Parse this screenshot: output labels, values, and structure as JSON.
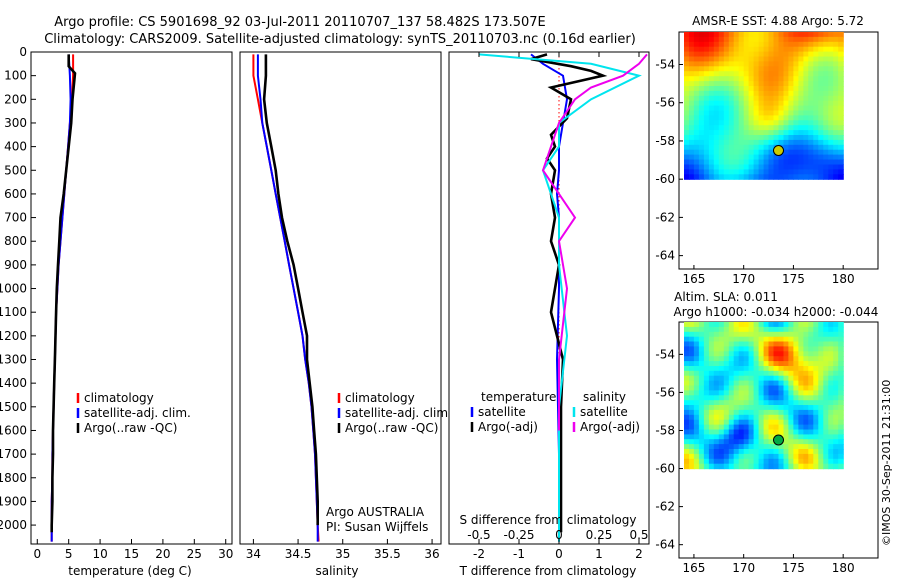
{
  "header": {
    "line1": "Argo profile: CS 5901698_92 03-Jul-2011 20110707_137 58.482S 173.507E",
    "line2": "Climatology: CARS2009. Satellite-adjusted climatology: synTS_20110703.nc (0.16d earlier)"
  },
  "colors": {
    "climatology": "#ff0000",
    "satellite": "#0000ff",
    "argo": "#000000",
    "sal_satellite": "#00e5ee",
    "sal_argo": "#ee00ee"
  },
  "chart_data": [
    {
      "type": "line",
      "panel": "temperature",
      "xlabel": "temperature (deg C)",
      "ylabel": "",
      "xlim": [
        -1,
        31
      ],
      "ylim": [
        0,
        2080
      ],
      "y_reversed": true,
      "xticks": [
        0,
        5,
        10,
        15,
        20,
        25,
        30
      ],
      "yticks": [
        0,
        100,
        200,
        300,
        400,
        500,
        600,
        700,
        800,
        900,
        1000,
        1100,
        1200,
        1300,
        1400,
        1500,
        1600,
        1700,
        1800,
        1900,
        2000
      ],
      "legend": [
        "climatology",
        "satellite-adj. clim.",
        "Argo(..raw -QC)"
      ],
      "series": [
        {
          "name": "climatology",
          "color": "#ff0000",
          "x": [
            5.7,
            5.7,
            5.5,
            5.2,
            4.9,
            4.6,
            4.3,
            4.0,
            3.7,
            3.4,
            3.2,
            3.0,
            2.9,
            2.8,
            2.7,
            2.6,
            2.5,
            2.4,
            2.4,
            2.3,
            2.3,
            2.3
          ],
          "y": [
            10,
            100,
            200,
            300,
            400,
            500,
            600,
            700,
            800,
            900,
            1000,
            1100,
            1200,
            1300,
            1400,
            1500,
            1600,
            1700,
            1800,
            1900,
            2000,
            2070
          ]
        },
        {
          "name": "satellite-adj. clim.",
          "color": "#0000ff",
          "x": [
            5.0,
            5.2,
            5.3,
            5.2,
            4.9,
            4.6,
            4.3,
            4.0,
            3.7,
            3.4,
            3.2,
            3.0,
            2.9,
            2.8,
            2.7,
            2.6,
            2.5,
            2.4,
            2.4,
            2.3,
            2.3,
            2.3
          ],
          "y": [
            10,
            100,
            200,
            300,
            400,
            500,
            600,
            700,
            800,
            900,
            1000,
            1100,
            1200,
            1300,
            1400,
            1500,
            1600,
            1700,
            1800,
            1900,
            2000,
            2070
          ]
        },
        {
          "name": "Argo(..raw -QC)",
          "color": "#000000",
          "x": [
            5.0,
            5.0,
            6.0,
            5.6,
            5.4,
            5.0,
            4.6,
            4.2,
            3.7,
            3.5,
            3.3,
            3.1,
            3.0,
            2.9,
            2.8,
            2.7,
            2.6,
            2.5,
            2.5,
            2.4,
            2.4,
            2.3,
            2.3
          ],
          "y": [
            10,
            60,
            90,
            200,
            300,
            400,
            500,
            600,
            700,
            800,
            900,
            1000,
            1100,
            1200,
            1300,
            1400,
            1500,
            1600,
            1700,
            1800,
            1900,
            2000,
            2030
          ]
        }
      ]
    },
    {
      "type": "line",
      "panel": "salinity",
      "xlabel": "salinity",
      "xlim": [
        33.85,
        36.1
      ],
      "ylim": [
        0,
        2080
      ],
      "y_reversed": true,
      "xticks": [
        34,
        34.5,
        35,
        35.5,
        36
      ],
      "legend": [
        "climatology",
        "satellite-adj. clim.",
        "Argo(..raw -QC)"
      ],
      "annotation": [
        "Argo AUSTRALIA",
        "PI: Susan Wijffels"
      ],
      "series": [
        {
          "name": "climatology",
          "color": "#ff0000",
          "x": [
            34.0,
            34.0,
            34.05,
            34.1,
            34.15,
            34.2,
            34.25,
            34.3,
            34.35,
            34.4,
            34.45,
            34.5,
            34.55,
            34.58,
            34.62,
            34.65,
            34.67,
            34.69,
            34.7,
            34.71,
            34.72,
            34.73
          ],
          "y": [
            10,
            100,
            200,
            300,
            400,
            500,
            600,
            700,
            800,
            900,
            1000,
            1100,
            1200,
            1300,
            1400,
            1500,
            1600,
            1700,
            1800,
            1900,
            2000,
            2070
          ]
        },
        {
          "name": "satellite-adj. clim.",
          "color": "#0000ff",
          "x": [
            34.05,
            34.05,
            34.08,
            34.1,
            34.15,
            34.2,
            34.25,
            34.3,
            34.35,
            34.4,
            34.45,
            34.5,
            34.55,
            34.58,
            34.62,
            34.65,
            34.67,
            34.69,
            34.7,
            34.71,
            34.72,
            34.72
          ],
          "y": [
            10,
            100,
            200,
            300,
            400,
            500,
            600,
            700,
            800,
            900,
            1000,
            1100,
            1200,
            1300,
            1400,
            1500,
            1600,
            1700,
            1800,
            1900,
            2000,
            2070
          ]
        },
        {
          "name": "Argo(..raw -QC)",
          "color": "#000000",
          "x": [
            34.14,
            34.14,
            34.12,
            34.15,
            34.2,
            34.25,
            34.28,
            34.32,
            34.38,
            34.45,
            34.5,
            34.55,
            34.6,
            34.6,
            34.63,
            34.66,
            34.68,
            34.7,
            34.71,
            34.72,
            34.72
          ],
          "y": [
            10,
            100,
            200,
            300,
            400,
            500,
            600,
            700,
            800,
            900,
            1000,
            1100,
            1200,
            1300,
            1400,
            1500,
            1600,
            1700,
            1800,
            1900,
            2000
          ]
        }
      ]
    },
    {
      "type": "line",
      "panel": "difference",
      "xlabel": "T difference from climatology",
      "top_label": "S difference from climatology",
      "xlim": [
        -2.75,
        2.25
      ],
      "ylim": [
        0,
        2080
      ],
      "y_reversed": true,
      "xticks": [
        -2,
        -1,
        0,
        1,
        2
      ],
      "s_ticks": [
        -0.5,
        -0.25,
        0,
        0.25,
        0.5
      ],
      "s_scale": 4,
      "legend": {
        "temperature": [
          "temperature",
          "satellite",
          "Argo(-adj)"
        ],
        "salinity": [
          "salinity",
          "satellite",
          "Argo(-adj)"
        ]
      },
      "series": [
        {
          "name": "T satellite",
          "color": "#0000ff",
          "x": [
            -0.7,
            -0.4,
            0.1,
            0.2,
            0.1,
            0.0,
            0.0,
            -0.05,
            0.0,
            0.0,
            0.0,
            -0.05,
            0.0,
            0.0
          ],
          "y": [
            10,
            50,
            100,
            200,
            300,
            400,
            500,
            600,
            700,
            800,
            1000,
            1300,
            1700,
            2070
          ]
        },
        {
          "name": "T Argo(-adj)",
          "color": "#000000",
          "x": [
            -0.3,
            -0.7,
            0.3,
            0.8,
            1.1,
            -0.2,
            0.3,
            0.2,
            -0.2,
            -0.1,
            -0.3,
            -0.1,
            -0.2,
            -0.1,
            -0.2,
            0.0,
            -0.1,
            -0.2,
            0.1,
            0.05,
            0.05,
            0.05,
            0.05
          ],
          "y": [
            10,
            30,
            60,
            80,
            100,
            150,
            200,
            280,
            350,
            400,
            450,
            500,
            600,
            700,
            800,
            900,
            1000,
            1100,
            1300,
            1500,
            1700,
            1900,
            2030
          ]
        },
        {
          "name": "S satellite",
          "color": "#00e5ee",
          "x": [
            -0.5,
            0.2,
            0.5,
            0.2,
            0.0,
            0.0,
            -0.1,
            0.0,
            0.0,
            0.05,
            0.0,
            0.0,
            0.0
          ],
          "y": [
            10,
            50,
            100,
            200,
            300,
            400,
            500,
            700,
            900,
            1200,
            1500,
            1800,
            2070
          ]
        },
        {
          "name": "S Argo(-adj)",
          "color": "#ee00ee",
          "x": [
            0.55,
            0.5,
            0.4,
            0.2,
            0.1,
            0.0,
            -0.05,
            -0.1,
            0.0,
            0.1,
            0.0,
            0.05,
            0.0,
            0.0
          ],
          "y": [
            10,
            50,
            100,
            150,
            200,
            300,
            400,
            500,
            600,
            700,
            800,
            1000,
            1300,
            1600
          ]
        }
      ]
    },
    {
      "type": "heatmap",
      "panel": "sst_map",
      "title": "AMSR-E SST: 4.88  Argo: 5.72",
      "xlim": [
        163.5,
        183.5
      ],
      "ylim": [
        -64.7,
        -52.3
      ],
      "xticks": [
        165,
        170,
        175,
        180
      ],
      "yticks": [
        -54,
        -56,
        -58,
        -60,
        -62,
        -64
      ],
      "marker": {
        "lon": 173.5,
        "lat": -58.5
      }
    },
    {
      "type": "heatmap",
      "panel": "sla_map",
      "title": "Altim. SLA: 0.011",
      "subtitle": "Argo h1000: -0.034  h2000: -0.044",
      "xlim": [
        163.5,
        183.5
      ],
      "ylim": [
        -64.7,
        -52.3
      ],
      "xticks": [
        165,
        170,
        175,
        180
      ],
      "yticks": [
        -54,
        -56,
        -58,
        -60,
        -62,
        -64
      ],
      "marker": {
        "lon": 173.5,
        "lat": -58.5
      }
    }
  ],
  "footer": {
    "credit": "©IMOS 30-Sep-2011 21:31:00"
  }
}
